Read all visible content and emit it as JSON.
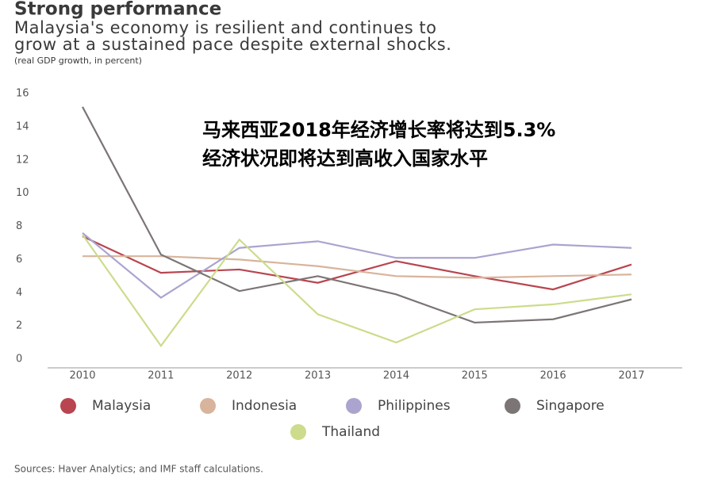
{
  "chart_data": {
    "type": "line",
    "title": "Strong performance",
    "subtitle": [
      "Malaysia's economy is resilient and continues to",
      "grow at a sustained pace despite external shocks."
    ],
    "units": "(real GDP growth, in percent)",
    "annotation": [
      "马来西亚2018年经济增长率将达到5.3%",
      "经济状况即将达到高收入国家水平"
    ],
    "source": "Sources: Haver Analytics; and IMF staff calculations.",
    "categories": [
      "2010",
      "2011",
      "2012",
      "2013",
      "2014",
      "2015",
      "2016",
      "2017"
    ],
    "series": [
      {
        "name": "Malaysia",
        "color": "#b8454f",
        "values": [
          7.4,
          5.2,
          5.4,
          4.6,
          5.9,
          5.0,
          4.2,
          5.7
        ]
      },
      {
        "name": "Indonesia",
        "color": "#d8b49c",
        "values": [
          6.2,
          6.2,
          6.0,
          5.6,
          5.0,
          4.9,
          5.0,
          5.1
        ]
      },
      {
        "name": "Philippines",
        "color": "#aaa4cf",
        "values": [
          7.6,
          3.7,
          6.7,
          7.1,
          6.1,
          6.1,
          6.9,
          6.7
        ]
      },
      {
        "name": "Singapore",
        "color": "#7c7575",
        "values": [
          15.2,
          6.3,
          4.1,
          5.0,
          3.9,
          2.2,
          2.4,
          3.6
        ]
      },
      {
        "name": "Thailand",
        "color": "#ccdc8c",
        "values": [
          7.5,
          0.8,
          7.2,
          2.7,
          1.0,
          3.0,
          3.3,
          3.9
        ]
      }
    ],
    "ylim": [
      0,
      16
    ],
    "yticks": [
      0,
      2,
      4,
      6,
      8,
      10,
      12,
      14,
      16
    ]
  }
}
